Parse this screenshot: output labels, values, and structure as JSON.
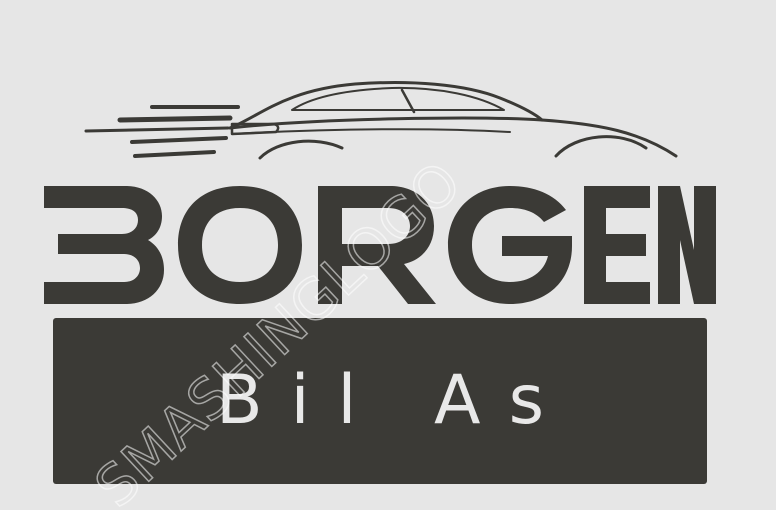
{
  "brand": {
    "name": "BORGEN",
    "tagline": "Bil As"
  },
  "watermark": {
    "text": "SMASHINGLOGO"
  },
  "icons": {
    "car": "car-silhouette-icon"
  },
  "colors": {
    "background": "#e6e6e6",
    "ink": "#3b3a36",
    "banner_text": "#e8e8e8"
  }
}
